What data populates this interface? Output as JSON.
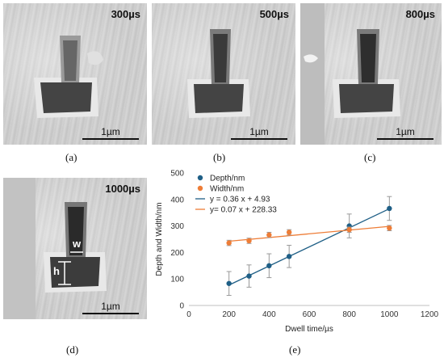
{
  "panels": [
    {
      "id": "a",
      "caption": "(a)",
      "label": "300µs",
      "scale": "1µm"
    },
    {
      "id": "b",
      "caption": "(b)",
      "label": "500µs",
      "scale": "1µm"
    },
    {
      "id": "c",
      "caption": "(c)",
      "label": "800µs",
      "scale": "1µm"
    },
    {
      "id": "d",
      "caption": "(d)",
      "label": "1000µs",
      "scale": "1µm",
      "dim_w": "w",
      "dim_h": "h"
    }
  ],
  "chart_caption": "(e)",
  "chart_data": {
    "type": "scatter",
    "xlabel": "Dwell time/µs",
    "ylabel": "Depth and Width/nm",
    "xlim": [
      0,
      1200
    ],
    "ylim": [
      0,
      500
    ],
    "xticks": [
      0,
      200,
      400,
      600,
      800,
      1000,
      1200
    ],
    "yticks": [
      0,
      100,
      200,
      300,
      400,
      500
    ],
    "legend_position": "top-left",
    "series": [
      {
        "name": "Depth/nm",
        "color": "#1f5f86",
        "x": [
          200,
          300,
          400,
          500,
          800,
          1000
        ],
        "y": [
          83,
          111,
          150,
          185,
          300,
          366
        ],
        "err": [
          45,
          42,
          45,
          42,
          45,
          45
        ]
      },
      {
        "name": "Width/nm",
        "color": "#ee7d37",
        "x": [
          200,
          300,
          400,
          500,
          800,
          1000
        ],
        "y": [
          236,
          244,
          266,
          276,
          286,
          292
        ],
        "err": [
          10,
          10,
          10,
          10,
          10,
          10
        ]
      }
    ],
    "fits": [
      {
        "name": "y = 0.36 x + 4.93",
        "color": "#1f5f86",
        "slope": 0.36,
        "intercept": 4.93,
        "x": [
          200,
          1000
        ]
      },
      {
        "name": "y= 0.07 x + 228.33",
        "color": "#ee7d37",
        "slope": 0.07,
        "intercept": 228.33,
        "x": [
          200,
          1000
        ]
      }
    ]
  }
}
